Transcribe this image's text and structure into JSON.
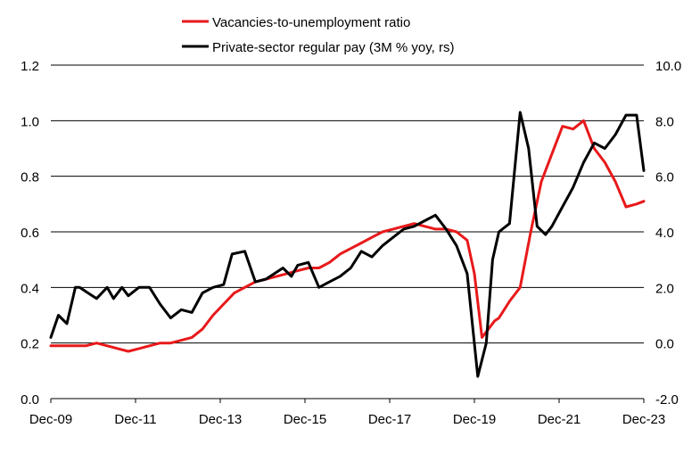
{
  "chart_data": {
    "type": "line",
    "title": "",
    "xlabel": "",
    "ylabel": "",
    "y2label": "",
    "x_tick_labels": [
      "Dec-09",
      "Dec-11",
      "Dec-13",
      "Dec-15",
      "Dec-17",
      "Dec-19",
      "Dec-21",
      "Dec-23"
    ],
    "x_range": [
      2009.92,
      2023.92
    ],
    "y_left": {
      "min": 0.0,
      "max": 1.2,
      "ticks": [
        0.0,
        0.2,
        0.4,
        0.6,
        0.8,
        1.0,
        1.2
      ],
      "tick_labels": [
        "0.0",
        "0.2",
        "0.4",
        "0.6",
        "0.8",
        "1.0",
        "1.2"
      ]
    },
    "y_right": {
      "min": -2.0,
      "max": 10.0,
      "ticks": [
        -2.0,
        0.0,
        2.0,
        4.0,
        6.0,
        8.0,
        10.0
      ],
      "tick_labels": [
        "-2.0",
        "0.0",
        "2.0",
        "4.0",
        "6.0",
        "8.0",
        "10.0"
      ]
    },
    "grid": true,
    "legend_position": "top-center",
    "series": [
      {
        "name": "Vacancies-to-unemployment ratio",
        "axis": "left",
        "color": "#e8191b",
        "x": [
          2009.92,
          2010.25,
          2010.5,
          2010.75,
          2011.0,
          2011.25,
          2011.5,
          2011.75,
          2012.0,
          2012.25,
          2012.5,
          2012.75,
          2013.0,
          2013.25,
          2013.5,
          2013.75,
          2014.0,
          2014.25,
          2014.5,
          2014.75,
          2015.0,
          2015.25,
          2015.5,
          2015.75,
          2016.0,
          2016.25,
          2016.5,
          2016.75,
          2017.0,
          2017.25,
          2017.5,
          2017.75,
          2018.0,
          2018.25,
          2018.5,
          2018.75,
          2019.0,
          2019.25,
          2019.5,
          2019.75,
          2019.92,
          2020.1,
          2020.25,
          2020.4,
          2020.5,
          2020.75,
          2021.0,
          2021.25,
          2021.5,
          2021.75,
          2022.0,
          2022.25,
          2022.5,
          2022.75,
          2023.0,
          2023.25,
          2023.5,
          2023.75,
          2023.92
        ],
        "values": [
          0.19,
          0.19,
          0.19,
          0.19,
          0.2,
          0.19,
          0.18,
          0.17,
          0.18,
          0.19,
          0.2,
          0.2,
          0.21,
          0.22,
          0.25,
          0.3,
          0.34,
          0.38,
          0.4,
          0.42,
          0.43,
          0.44,
          0.45,
          0.46,
          0.47,
          0.47,
          0.49,
          0.52,
          0.54,
          0.56,
          0.58,
          0.6,
          0.61,
          0.62,
          0.63,
          0.62,
          0.61,
          0.61,
          0.6,
          0.57,
          0.45,
          0.22,
          0.25,
          0.28,
          0.29,
          0.35,
          0.4,
          0.6,
          0.78,
          0.88,
          0.98,
          0.97,
          1.0,
          0.9,
          0.85,
          0.78,
          0.69,
          0.7,
          0.71
        ]
      },
      {
        "name": "Private-sector regular pay (3M % yoy, rs)",
        "axis": "right",
        "color": "#000000",
        "x": [
          2009.92,
          2010.1,
          2010.3,
          2010.5,
          2010.6,
          2010.8,
          2011.0,
          2011.25,
          2011.4,
          2011.6,
          2011.75,
          2012.0,
          2012.25,
          2012.5,
          2012.75,
          2013.0,
          2013.25,
          2013.5,
          2013.75,
          2014.0,
          2014.2,
          2014.5,
          2014.75,
          2015.0,
          2015.2,
          2015.4,
          2015.6,
          2015.75,
          2016.0,
          2016.25,
          2016.5,
          2016.75,
          2017.0,
          2017.25,
          2017.5,
          2017.75,
          2018.0,
          2018.25,
          2018.5,
          2018.75,
          2019.0,
          2019.25,
          2019.5,
          2019.75,
          2020.0,
          2020.2,
          2020.35,
          2020.5,
          2020.75,
          2021.0,
          2021.2,
          2021.4,
          2021.6,
          2021.75,
          2022.0,
          2022.25,
          2022.5,
          2022.75,
          2023.0,
          2023.25,
          2023.5,
          2023.75,
          2023.92
        ],
        "values": [
          0.2,
          1.0,
          0.7,
          2.0,
          2.0,
          1.8,
          1.6,
          2.0,
          1.6,
          2.0,
          1.7,
          2.0,
          2.0,
          1.4,
          0.9,
          1.2,
          1.1,
          1.8,
          2.0,
          2.1,
          3.2,
          3.3,
          2.2,
          2.3,
          2.5,
          2.7,
          2.4,
          2.8,
          2.9,
          2.0,
          2.2,
          2.4,
          2.7,
          3.3,
          3.1,
          3.5,
          3.8,
          4.1,
          4.2,
          4.4,
          4.6,
          4.1,
          3.5,
          2.5,
          -1.2,
          0.0,
          3.0,
          4.0,
          4.3,
          8.3,
          7.0,
          4.2,
          3.9,
          4.2,
          4.9,
          5.6,
          6.5,
          7.2,
          7.0,
          7.5,
          8.2,
          8.2,
          6.2
        ]
      }
    ]
  }
}
